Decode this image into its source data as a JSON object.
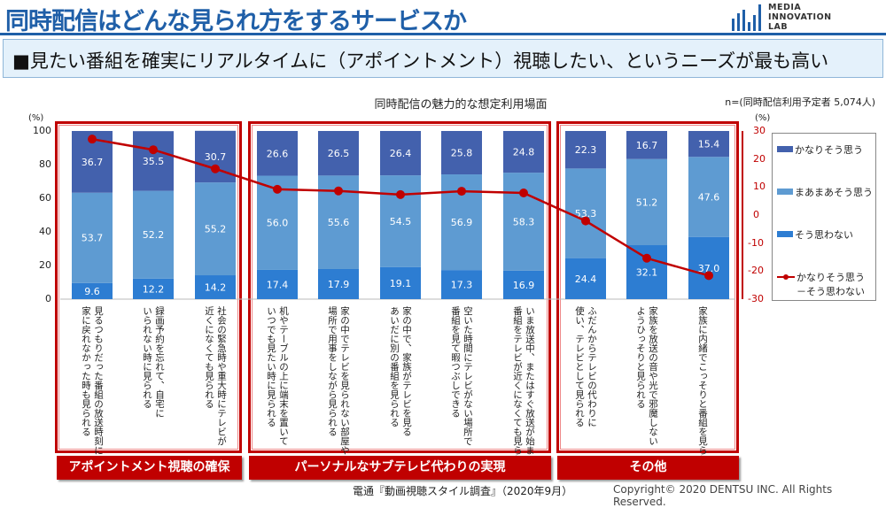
{
  "header": {
    "title": "同時配信はどんな見られ方をするサービスか",
    "logo_lines": [
      "MEDIA",
      "INNOVATION",
      "LAB"
    ]
  },
  "banner": {
    "text": "■見たい番組を確実にリアルタイムに（アポイントメント）視聴したい、というニーズが最も高い"
  },
  "note": "n=(同時配信利用予定者 5,074人)",
  "footer": {
    "source": "電通『動画視聴スタイル調査』（2020年9月）",
    "copyright": "Copyright© 2020 DENTSU INC. All Rights Reserved."
  },
  "groups": [
    {
      "label": "アポイントメント視聴の確保"
    },
    {
      "label": "パーソナルなサブテレビ代わりの実現"
    },
    {
      "label": "その他"
    }
  ],
  "colors": {
    "strongly_agree": "#4361ad",
    "somewhat_agree": "#5e9bd2",
    "disagree": "#2d7dd2",
    "line": "#c00000"
  },
  "chart_data": {
    "type": "bar",
    "stacked": true,
    "title": "同時配信の魅力的な想定利用場面",
    "ylabel": "(%)",
    "ylim": [
      0,
      100
    ],
    "yticks": [
      "0",
      "20",
      "40",
      "60",
      "80",
      "100"
    ],
    "y2label": "(%)",
    "y2lim": [
      -30,
      30
    ],
    "y2ticks": [
      "30",
      "20",
      "10",
      "0",
      "-10",
      "-20",
      "-30"
    ],
    "legend_position": "right",
    "categories": [
      "見るつもりだった番組の放送時刻に\n家に戻れなかった時も見られる",
      "録画予約を忘れて、自宅に\nいられない時に見られる",
      "社会の緊急時や重大時にテレビが\n近くになくても見られる",
      "机やテーブルの上に端末を置いて\nいつでも見たい時に見られる",
      "家の中でテレビを見られない部屋や\n場所で用事をしながら見られる",
      "家の中で、家族がテレビを見る\nあいだに別の番組を見られる",
      "空いた時間にテレビがない場所で\n番組を見て暇つぶしできる",
      "いま放送中、またはすぐ放送が始まる\n番組をテレビが近くになくても見られる",
      "ふだんからテレビの代わりに\n使い、テレビとして見られる",
      "家族を放送の音や光で邪魔しない\nようひっそりと見られる",
      "家族に内緒でこっそりと番組を見られる"
    ],
    "series": [
      {
        "name": "そう思わない",
        "values": [
          9.6,
          12.2,
          14.2,
          17.4,
          17.9,
          19.1,
          17.3,
          16.9,
          24.4,
          32.1,
          37.0
        ],
        "labels": [
          "9.6",
          "12.2",
          "14.2",
          "17.4",
          "17.9",
          "19.1",
          "17.3",
          "16.9",
          "24.4",
          "32.1",
          "37.0"
        ]
      },
      {
        "name": "まあまあそう思う",
        "values": [
          53.7,
          52.2,
          55.2,
          56.0,
          55.6,
          54.5,
          56.9,
          58.3,
          53.3,
          51.2,
          47.6
        ],
        "labels": [
          "53.7",
          "52.2",
          "55.2",
          "56.0",
          "55.6",
          "54.5",
          "56.9",
          "58.3",
          "53.3",
          "51.2",
          "47.6"
        ]
      },
      {
        "name": "かなりそう思う",
        "values": [
          36.7,
          35.5,
          30.7,
          26.6,
          26.5,
          26.4,
          25.8,
          24.8,
          22.3,
          16.7,
          15.4
        ],
        "labels": [
          "36.7",
          "35.5",
          "30.7",
          "26.6",
          "26.5",
          "26.4",
          "25.8",
          "24.8",
          "22.3",
          "16.7",
          "15.4"
        ]
      }
    ],
    "line_series": {
      "name": "かなりそう思う\n－そう思わない",
      "axis": "right",
      "values": [
        27.1,
        23.3,
        16.5,
        9.2,
        8.6,
        7.3,
        8.5,
        7.9,
        -2.1,
        -15.4,
        -21.6
      ]
    }
  }
}
